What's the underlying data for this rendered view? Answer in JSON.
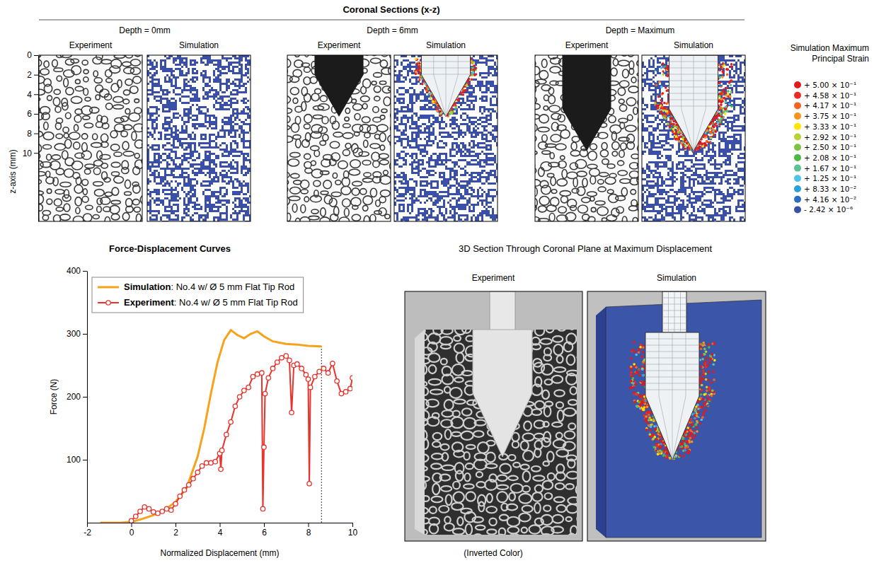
{
  "chart_data": {
    "type": "line",
    "title": "Force-Displacement Curves",
    "x_label": "Normalized Displacement (mm)",
    "y_label": "Force (N)",
    "xlim": [
      -2,
      10
    ],
    "xticks": [
      -2,
      0,
      2,
      4,
      6,
      8,
      10
    ],
    "ylim": [
      0,
      400
    ],
    "yticks": [
      100,
      200,
      300,
      400
    ],
    "legend": "top-left",
    "max_displacement": 8.6,
    "series": [
      {
        "name": "Simulation: No.4 w/ Ø 5 mm Flat Tip Rod",
        "color": "#f7a21b",
        "line_style": "solid",
        "x": [
          -1.4,
          -0.5,
          0,
          0.5,
          1,
          1.5,
          2,
          2.5,
          3,
          3.3,
          3.6,
          3.9,
          4.2,
          4.5,
          4.8,
          5.1,
          5.4,
          5.7,
          6,
          6.4,
          7,
          7.5,
          8,
          8.6
        ],
        "values": [
          0,
          0,
          1,
          6,
          12,
          20,
          33,
          55,
          105,
          150,
          205,
          255,
          290,
          306,
          298,
          293,
          300,
          304,
          296,
          288,
          284,
          283,
          281,
          280
        ]
      },
      {
        "name": "Experiment: No.4 w/ Ø 5 mm Flat Tip Rod",
        "color": "#e8322b",
        "line_style": "solid",
        "marker": "circle",
        "x": [
          0,
          0.2,
          0.4,
          0.6,
          0.8,
          1,
          1.2,
          1.4,
          1.6,
          1.8,
          2,
          2.2,
          2.4,
          2.6,
          2.8,
          3,
          3.2,
          3.4,
          3.6,
          3.8,
          4,
          4.05,
          4.1,
          4.3,
          4.5,
          4.7,
          4.9,
          5.1,
          5.3,
          5.5,
          5.7,
          5.9,
          5.95,
          6,
          6.05,
          6.2,
          6.4,
          6.6,
          6.8,
          7,
          7.15,
          7.25,
          7.35,
          7.5,
          7.7,
          7.9,
          8,
          8.05,
          8.1,
          8.3,
          8.5,
          8.7,
          8.9,
          9.1,
          9.3,
          9.5,
          9.7,
          9.9,
          10
        ],
        "values": [
          3,
          10,
          18,
          25,
          22,
          17,
          15,
          18,
          22,
          20,
          30,
          42,
          52,
          60,
          70,
          80,
          90,
          95,
          95,
          97,
          110,
          85,
          115,
          140,
          160,
          185,
          200,
          210,
          215,
          232,
          236,
          238,
          22,
          120,
          205,
          230,
          245,
          255,
          262,
          265,
          258,
          175,
          250,
          252,
          245,
          235,
          228,
          62,
          215,
          232,
          240,
          245,
          238,
          253,
          225,
          205,
          208,
          213,
          230
        ]
      }
    ]
  },
  "coronal_sections": {
    "title": "Coronal Sections (x-z)",
    "z_label": "z-axis (mm)",
    "zlim": [
      0,
      17
    ],
    "zticks": [
      0,
      2,
      4,
      6,
      8,
      10
    ],
    "sections": [
      {
        "label": "Depth = 0mm",
        "panels": [
          "Experiment",
          "Simulation"
        ]
      },
      {
        "label": "Depth = 6mm",
        "panels": [
          "Experiment",
          "Simulation"
        ],
        "rod_tip_z": 6.3
      },
      {
        "label": "Depth = Maximum",
        "panels": [
          "Experiment",
          "Simulation"
        ],
        "rod_tip_z": 9.8
      }
    ]
  },
  "strain_legend": {
    "title": "Simulation Maximum Principal Strain",
    "entries": [
      {
        "value": 0.5,
        "label": "+ 5.00 × 10⁻¹",
        "color": "#e31a1c"
      },
      {
        "value": 0.458,
        "label": "+ 4.58 × 10⁻¹",
        "color": "#ea2a24"
      },
      {
        "value": 0.417,
        "label": "+ 4.17 × 10⁻¹",
        "color": "#f26522"
      },
      {
        "value": 0.375,
        "label": "+ 3.75 × 10⁻¹",
        "color": "#f7941d"
      },
      {
        "value": 0.333,
        "label": "+ 3.33 × 10⁻¹",
        "color": "#ffe600"
      },
      {
        "value": 0.292,
        "label": "+ 2.92 × 10⁻¹",
        "color": "#b5d334"
      },
      {
        "value": 0.25,
        "label": "+ 2.50 × 10⁻¹",
        "color": "#7dc242"
      },
      {
        "value": 0.208,
        "label": "+ 2.08 × 10⁻¹",
        "color": "#4cb848"
      },
      {
        "value": 0.167,
        "label": "+ 1.67 × 10⁻¹",
        "color": "#5dc28f"
      },
      {
        "value": 0.125,
        "label": "+ 1.25 × 10⁻¹",
        "color": "#4fc3e8"
      },
      {
        "value": 0.0833,
        "label": "+ 8.33 × 10⁻²",
        "color": "#2b9fd9"
      },
      {
        "value": 0.0416,
        "label": "+ 4.16 × 10⁻²",
        "color": "#2a6fbf"
      },
      {
        "value": -2.42e-06,
        "label": "- 2.42 × 10⁻⁶",
        "color": "#3953a4"
      }
    ]
  },
  "section_3d": {
    "title": "3D Section Through Coronal Plane at Maximum Displacement",
    "panels": [
      "Experiment",
      "Simulation"
    ],
    "caption": "(Inverted Color)"
  }
}
